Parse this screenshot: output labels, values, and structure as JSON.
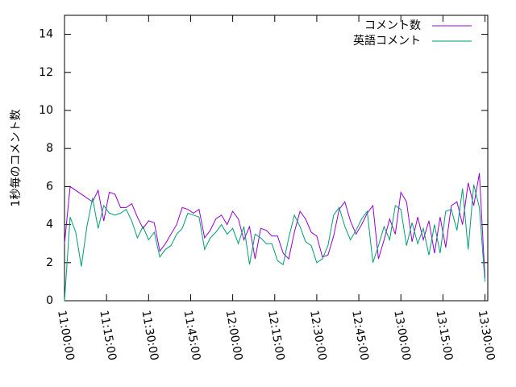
{
  "chart_data": {
    "type": "line",
    "ylabel": "1秒毎のコメント数",
    "x": [
      "11:00:00",
      "11:02:00",
      "11:04:00",
      "11:06:00",
      "11:08:00",
      "11:10:00",
      "11:12:00",
      "11:14:00",
      "11:16:00",
      "11:18:00",
      "11:20:00",
      "11:22:00",
      "11:24:00",
      "11:26:00",
      "11:28:00",
      "11:30:00",
      "11:32:00",
      "11:34:00",
      "11:36:00",
      "11:38:00",
      "11:40:00",
      "11:42:00",
      "11:44:00",
      "11:46:00",
      "11:48:00",
      "11:50:00",
      "11:52:00",
      "11:54:00",
      "11:56:00",
      "11:58:00",
      "12:00:00",
      "12:02:00",
      "12:04:00",
      "12:06:00",
      "12:08:00",
      "12:10:00",
      "12:12:00",
      "12:14:00",
      "12:16:00",
      "12:18:00",
      "12:20:00",
      "12:22:00",
      "12:24:00",
      "12:26:00",
      "12:28:00",
      "12:30:00",
      "12:32:00",
      "12:34:00",
      "12:36:00",
      "12:38:00",
      "12:40:00",
      "12:42:00",
      "12:44:00",
      "12:46:00",
      "12:48:00",
      "12:50:00",
      "12:52:00",
      "12:54:00",
      "12:56:00",
      "12:58:00",
      "13:00:00",
      "13:02:00",
      "13:04:00",
      "13:06:00",
      "13:08:00",
      "13:10:00",
      "13:12:00",
      "13:14:00",
      "13:16:00",
      "13:18:00",
      "13:20:00",
      "13:22:00",
      "13:24:00",
      "13:26:00",
      "13:28:00",
      "13:30:00"
    ],
    "series": [
      {
        "name": "コメント数",
        "color": "#9400d3",
        "values": [
          3.0,
          6.0,
          5.8,
          5.6,
          5.4,
          5.2,
          5.8,
          4.2,
          5.7,
          5.6,
          4.9,
          4.9,
          5.1,
          4.4,
          3.8,
          4.2,
          4.1,
          2.6,
          3.0,
          3.5,
          4.0,
          4.9,
          4.8,
          4.6,
          4.8,
          3.3,
          3.7,
          4.3,
          4.5,
          4.0,
          4.7,
          4.3,
          3.2,
          3.9,
          2.2,
          3.8,
          3.7,
          3.4,
          3.4,
          2.5,
          2.2,
          3.6,
          4.7,
          4.3,
          3.6,
          3.4,
          2.3,
          2.4,
          3.4,
          4.8,
          5.2,
          4.2,
          3.5,
          4.0,
          4.6,
          5.0,
          2.2,
          3.2,
          4.3,
          3.5,
          5.7,
          5.2,
          3.1,
          4.4,
          3.2,
          4.2,
          2.5,
          4.4,
          2.8,
          5.0,
          5.2,
          4.0,
          6.2,
          5.0,
          6.7,
          1.2
        ]
      },
      {
        "name": "英語コメント",
        "color": "#009e73",
        "values": [
          0.0,
          4.4,
          3.6,
          1.8,
          3.9,
          5.4,
          3.8,
          5.0,
          4.6,
          4.5,
          4.6,
          4.8,
          4.2,
          3.3,
          3.9,
          3.2,
          3.6,
          2.3,
          2.7,
          2.9,
          3.5,
          3.8,
          4.6,
          4.5,
          4.4,
          2.7,
          3.3,
          3.6,
          4.0,
          3.5,
          3.8,
          3.0,
          3.9,
          1.9,
          3.5,
          3.3,
          3.0,
          3.0,
          2.1,
          1.9,
          3.3,
          4.5,
          3.9,
          3.1,
          2.9,
          2.0,
          2.2,
          2.9,
          4.5,
          4.9,
          3.9,
          3.2,
          3.7,
          4.3,
          4.7,
          2.0,
          2.9,
          3.9,
          3.2,
          5.0,
          4.8,
          2.9,
          4.1,
          3.0,
          3.8,
          2.4,
          4.0,
          2.5,
          4.7,
          4.8,
          3.7,
          5.9,
          2.7,
          6.1,
          4.9,
          1.0
        ]
      }
    ],
    "xlim": [
      "11:00:00",
      "13:31:00"
    ],
    "xticks": [
      "11:00:00",
      "11:15:00",
      "11:30:00",
      "11:45:00",
      "12:00:00",
      "12:15:00",
      "12:30:00",
      "12:45:00",
      "13:00:00",
      "13:15:00",
      "13:30:00"
    ],
    "ylim": [
      0,
      15
    ],
    "yticks": [
      0,
      2,
      4,
      6,
      8,
      10,
      12,
      14
    ],
    "legend": "top-right"
  }
}
